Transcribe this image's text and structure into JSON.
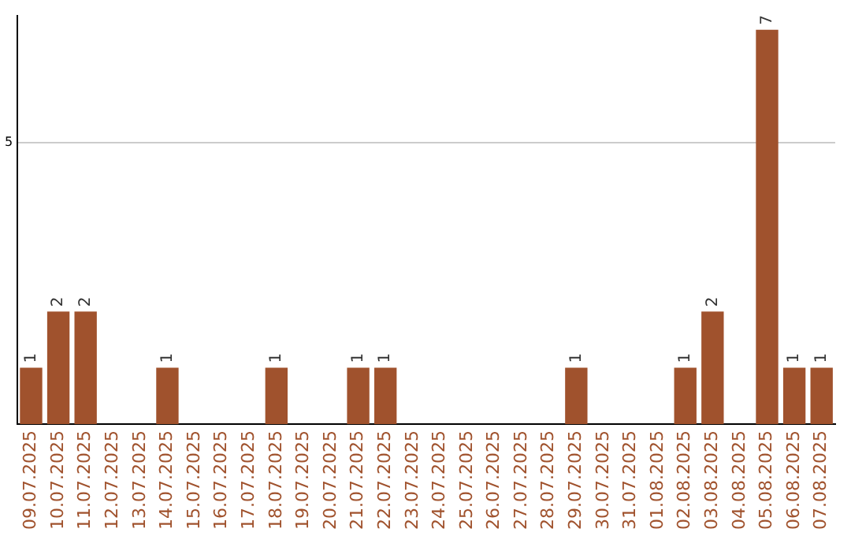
{
  "chart_data": {
    "type": "bar",
    "categories": [
      "09.07.2025",
      "10.07.2025",
      "11.07.2025",
      "12.07.2025",
      "13.07.2025",
      "14.07.2025",
      "15.07.2025",
      "16.07.2025",
      "17.07.2025",
      "18.07.2025",
      "19.07.2025",
      "20.07.2025",
      "21.07.2025",
      "22.07.2025",
      "23.07.2025",
      "24.07.2025",
      "25.07.2025",
      "26.07.2025",
      "27.07.2025",
      "28.07.2025",
      "29.07.2025",
      "30.07.2025",
      "31.07.2025",
      "01.08.2025",
      "02.08.2025",
      "03.08.2025",
      "04.08.2025",
      "05.08.2025",
      "06.08.2025",
      "07.08.2025"
    ],
    "values": [
      1,
      2,
      2,
      0,
      0,
      1,
      0,
      0,
      0,
      1,
      0,
      0,
      1,
      1,
      0,
      0,
      0,
      0,
      0,
      0,
      1,
      0,
      0,
      0,
      1,
      2,
      0,
      7,
      1,
      1
    ],
    "value_labels": [
      "1",
      "2",
      "2",
      null,
      null,
      "1",
      null,
      null,
      null,
      "1",
      null,
      null,
      "1",
      "1",
      null,
      null,
      null,
      null,
      null,
      null,
      "1",
      null,
      null,
      null,
      "1",
      "2",
      null,
      "7",
      "1",
      "1"
    ],
    "color": "#a0522d",
    "ylim": [
      0,
      7.25
    ],
    "yticks": [
      5
    ],
    "grid": "y"
  }
}
